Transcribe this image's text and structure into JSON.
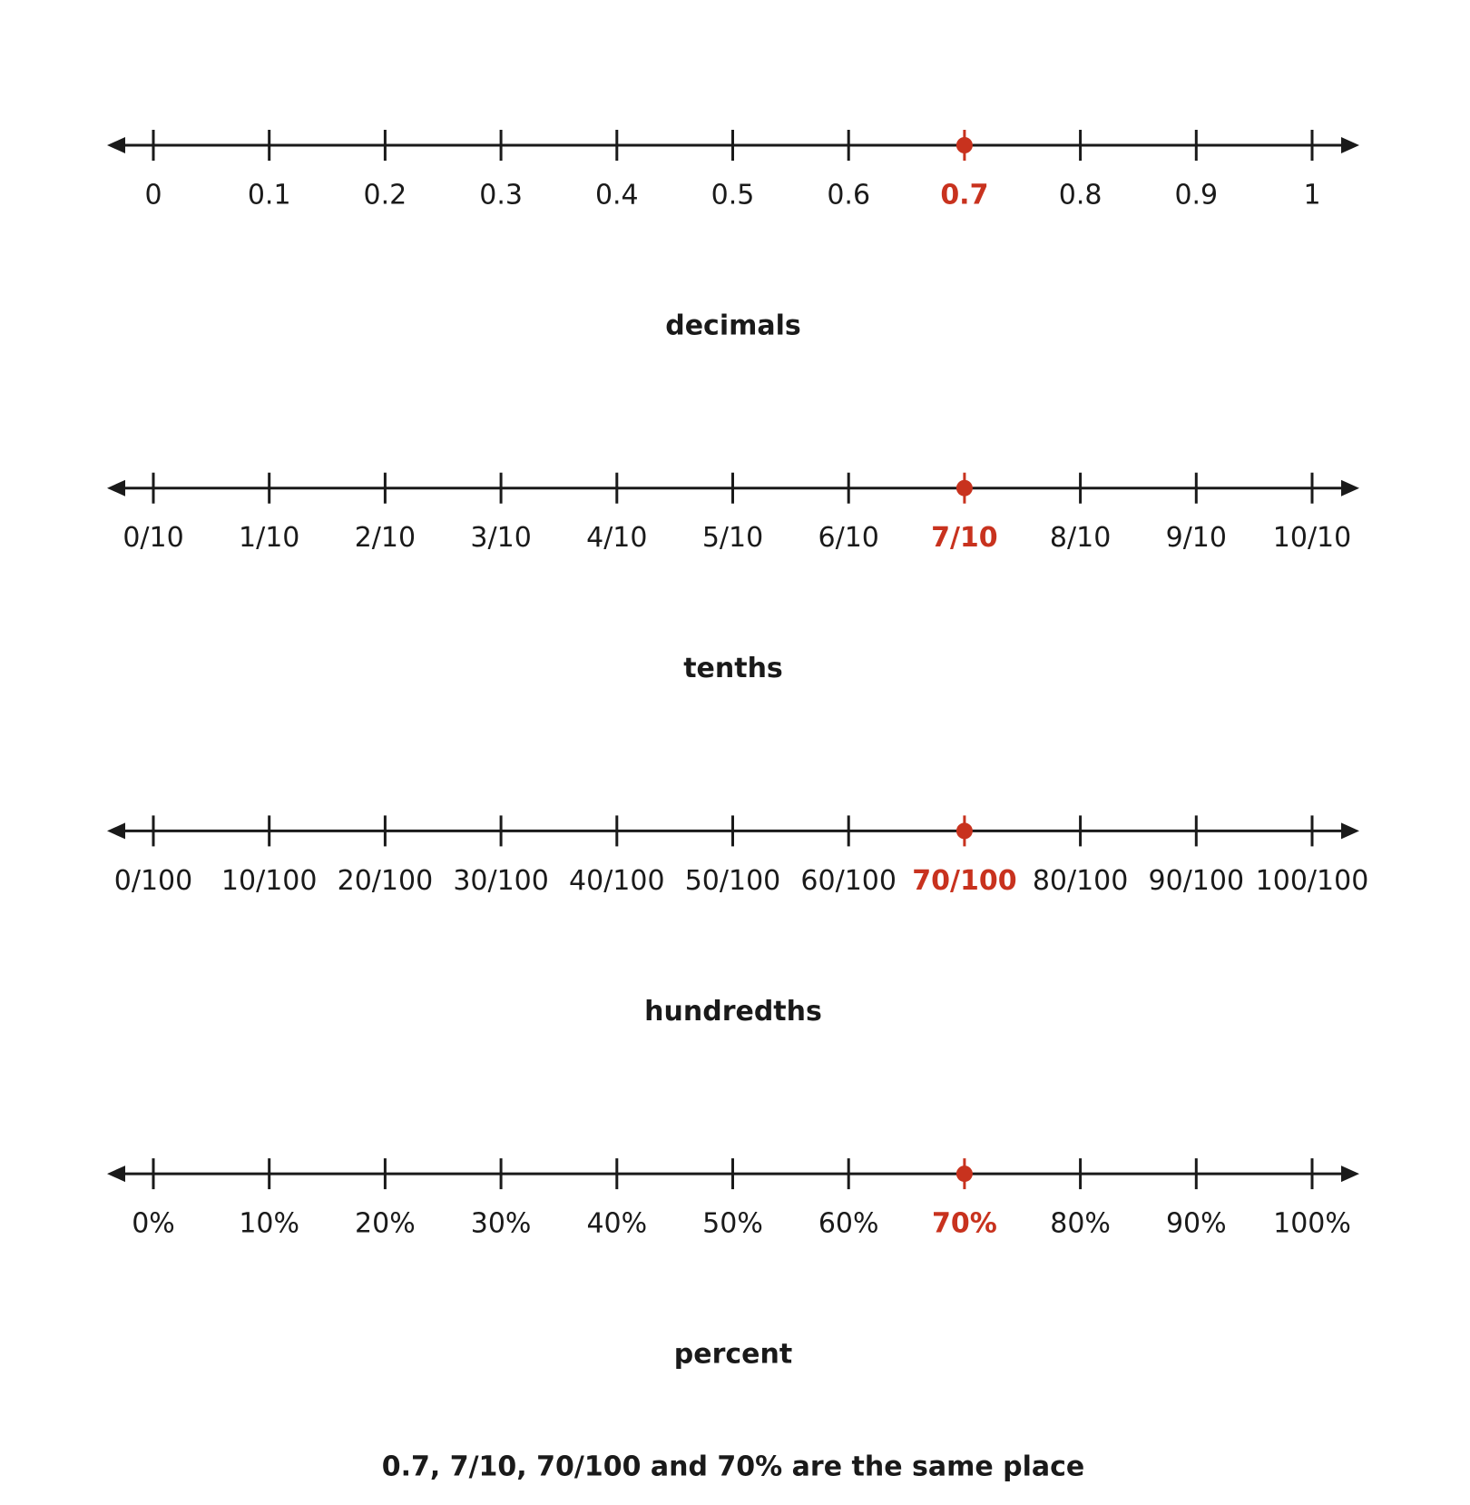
{
  "number_lines": [
    {
      "label": "decimals",
      "ticks": [
        "0",
        "0.1",
        "0.2",
        "0.3",
        "0.4",
        "0.5",
        "0.6",
        "0.7",
        "0.8",
        "0.9",
        "1"
      ]
    },
    {
      "label": "tenths",
      "ticks": [
        "0/10",
        "1/10",
        "2/10",
        "3/10",
        "4/10",
        "5/10",
        "6/10",
        "7/10",
        "8/10",
        "9/10",
        "10/10"
      ]
    },
    {
      "label": "hundredths",
      "ticks": [
        "0/100",
        "10/100",
        "20/100",
        "30/100",
        "40/100",
        "50/100",
        "60/100",
        "70/100",
        "80/100",
        "90/100",
        "100/100"
      ]
    },
    {
      "label": "percent",
      "ticks": [
        "0%",
        "10%",
        "20%",
        "30%",
        "40%",
        "50%",
        "60%",
        "70%",
        "80%",
        "90%",
        "100%"
      ]
    }
  ],
  "highlighted_tick": 7,
  "highlight_color": "#c8321e",
  "caption": "0.7, 7/10, 70/100 and 70% are the same place"
}
